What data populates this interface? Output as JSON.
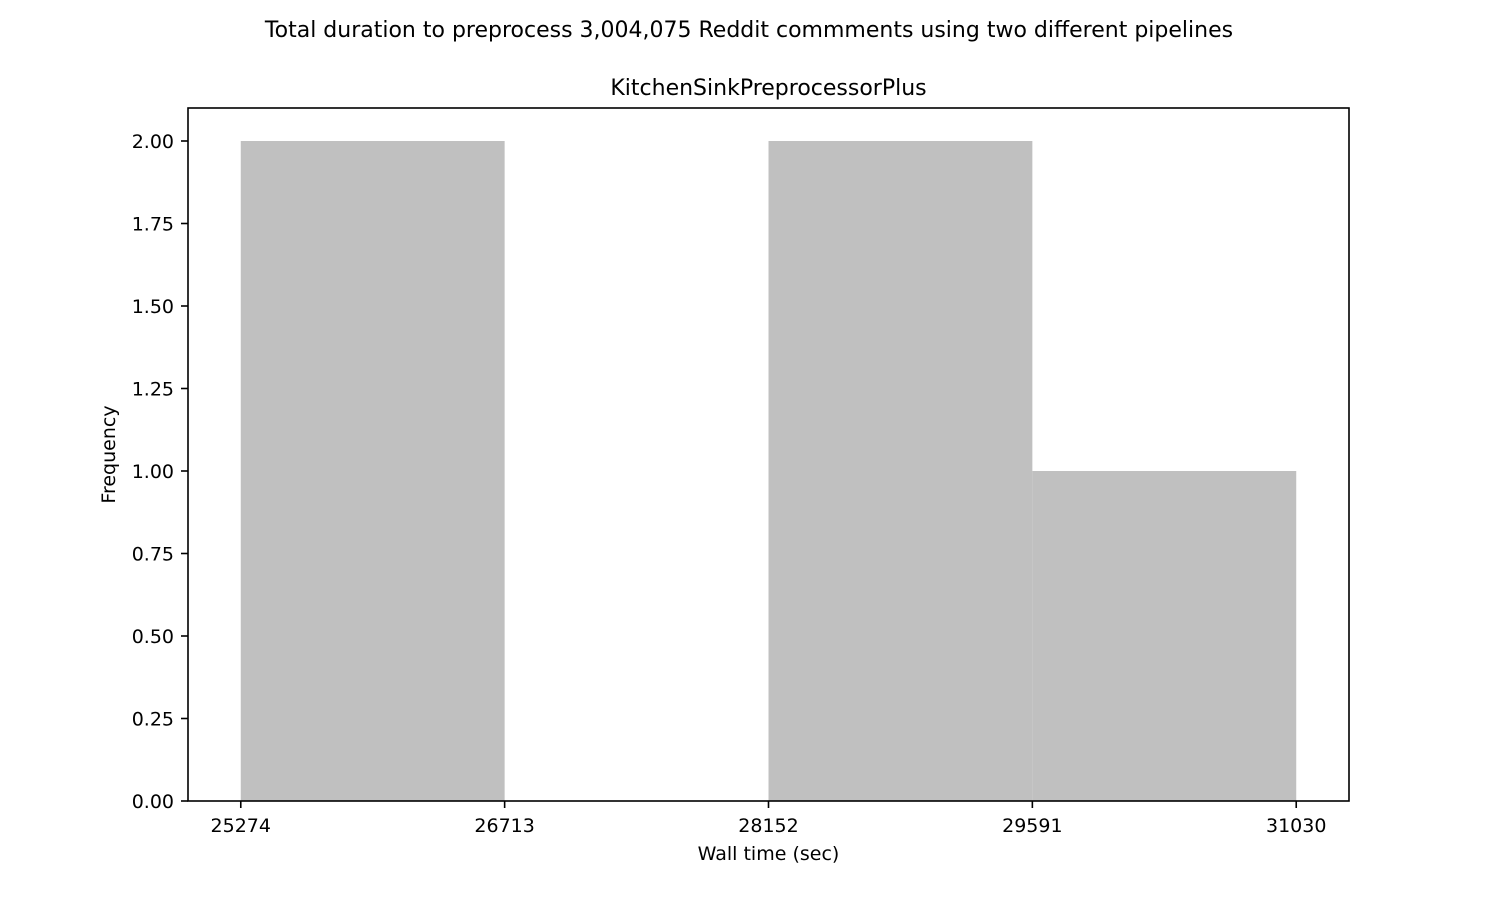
{
  "suptitle": "Total duration to preprocess 3,004,075 Reddit commments using two different pipelines",
  "chart_data": {
    "type": "bar",
    "subtype": "histogram",
    "title": "KitchenSinkPreprocessorPlus",
    "xlabel": "Wall time (sec)",
    "ylabel": "Frequency",
    "bin_edges": [
      25274,
      26713,
      28152,
      29591,
      31030
    ],
    "values": [
      2,
      0,
      2,
      1
    ],
    "xticks": [
      "25274",
      "26713",
      "28152",
      "29591",
      "31030"
    ],
    "yticks": [
      "0.00",
      "0.25",
      "0.50",
      "0.75",
      "1.00",
      "1.25",
      "1.50",
      "1.75",
      "2.00"
    ],
    "ytick_values": [
      0,
      0.25,
      0.5,
      0.75,
      1.0,
      1.25,
      1.5,
      1.75,
      2.0
    ],
    "ylim": [
      0,
      2.1
    ],
    "grid": false,
    "bar_color": "#c0c0c0"
  }
}
